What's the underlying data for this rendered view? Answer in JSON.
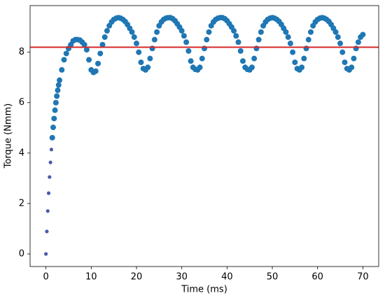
{
  "chart_data": {
    "type": "scatter",
    "xlabel": "Time (ms)",
    "ylabel": "Torque (Nmm)",
    "xlim": [
      -3.5,
      73.5
    ],
    "ylim": [
      -0.5,
      9.85
    ],
    "xticks": [
      0,
      10,
      20,
      30,
      40,
      50,
      60,
      70
    ],
    "yticks": [
      0,
      2,
      4,
      6,
      8
    ],
    "hline": {
      "value": 8.2,
      "color": "#d62728"
    },
    "series": [
      {
        "color": "#4a5ba9",
        "x": [
          0,
          0.2,
          0.4,
          0.6,
          0.8,
          1.0,
          1.2
        ],
        "values": [
          0,
          0.89,
          1.7,
          2.41,
          3.05,
          3.63,
          4.14
        ]
      },
      {
        "color": "#1f77b4",
        "x": [
          1.4,
          1.6,
          1.8,
          2.0,
          2.2,
          2.4,
          2.6,
          2.8,
          3.0,
          3.5,
          4,
          4.5,
          5,
          5.5,
          6,
          6.5,
          7,
          7.5,
          8,
          8.5,
          9,
          9.5,
          10,
          10.5,
          11,
          11.5,
          12,
          12.5,
          13,
          13.5,
          14,
          14.5,
          15,
          15.5,
          16,
          16.5,
          17,
          17.5,
          18,
          18.5,
          19,
          19.5,
          20,
          20.5,
          21,
          21.5,
          22,
          22.5,
          23,
          23.5,
          24,
          24.5,
          25,
          25.5,
          26,
          26.5,
          27,
          27.5,
          28,
          28.5,
          29,
          29.5,
          30,
          30.5,
          31,
          31.5,
          32,
          32.5,
          33,
          33.5,
          34,
          34.5,
          35,
          35.5,
          36,
          36.5,
          37,
          37.5,
          38,
          38.5,
          39,
          39.5,
          40,
          40.5,
          41,
          41.5,
          42,
          42.5,
          43,
          43.5,
          44,
          44.5,
          45,
          45.5,
          46,
          46.5,
          47,
          47.5,
          48,
          48.5,
          49,
          49.5,
          50,
          50.5,
          51,
          51.5,
          52,
          52.5,
          53,
          53.5,
          54,
          54.5,
          55,
          55.5,
          56,
          56.5,
          57,
          57.5,
          58,
          58.5,
          59,
          59.5,
          60,
          60.5,
          61,
          61.5,
          62,
          62.5,
          63,
          63.5,
          64,
          64.5,
          65,
          65.5,
          66,
          66.5,
          67,
          67.5,
          68,
          68.5,
          69,
          69.5,
          70
        ],
        "values": [
          4.61,
          5.02,
          5.37,
          5.7,
          6.0,
          6.26,
          6.49,
          6.7,
          6.89,
          7.3,
          7.7,
          7.95,
          8.15,
          8.3,
          8.45,
          8.5,
          8.5,
          8.48,
          8.4,
          8.3,
          8.1,
          7.7,
          7.3,
          7.2,
          7.25,
          7.55,
          7.95,
          8.3,
          8.6,
          8.85,
          9.05,
          9.2,
          9.3,
          9.35,
          9.37,
          9.35,
          9.3,
          9.22,
          9.1,
          8.95,
          8.8,
          8.6,
          8.35,
          8.0,
          7.6,
          7.35,
          7.3,
          7.4,
          7.75,
          8.15,
          8.5,
          8.8,
          9.05,
          9.2,
          9.3,
          9.35,
          9.37,
          9.37,
          9.33,
          9.25,
          9.13,
          9.0,
          8.85,
          8.65,
          8.4,
          8.05,
          7.65,
          7.4,
          7.32,
          7.3,
          7.4,
          7.75,
          8.15,
          8.5,
          8.8,
          9.05,
          9.2,
          9.3,
          9.35,
          9.37,
          9.37,
          9.33,
          9.25,
          9.13,
          9.0,
          8.85,
          8.65,
          8.4,
          8.05,
          7.65,
          7.4,
          7.32,
          7.3,
          7.4,
          7.75,
          8.15,
          8.5,
          8.8,
          9.05,
          9.2,
          9.3,
          9.35,
          9.37,
          9.35,
          9.3,
          9.22,
          9.1,
          8.95,
          8.8,
          8.6,
          8.35,
          8.0,
          7.6,
          7.35,
          7.3,
          7.4,
          7.75,
          8.15,
          8.5,
          8.8,
          9.05,
          9.2,
          9.3,
          9.35,
          9.37,
          9.35,
          9.3,
          9.22,
          9.1,
          8.95,
          8.8,
          8.6,
          8.35,
          8.0,
          7.6,
          7.35,
          7.3,
          7.4,
          7.75,
          8.15,
          8.4,
          8.6,
          8.7
        ]
      }
    ]
  }
}
